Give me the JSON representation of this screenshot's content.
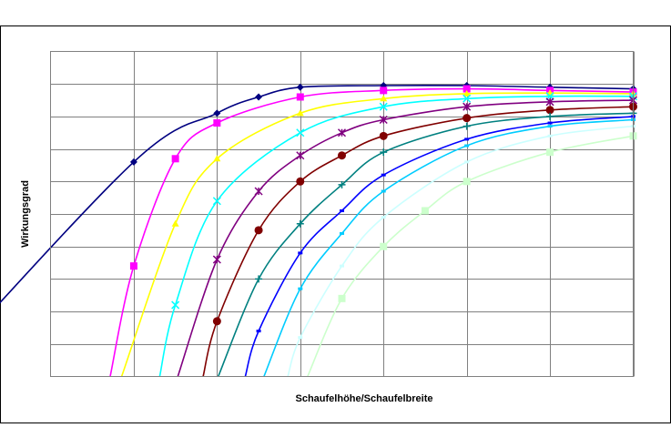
{
  "chart_data": {
    "type": "line",
    "title": "",
    "xlabel": "Schaufelhöhe/Schaufelbreite",
    "ylabel": "Wirkungsgrad",
    "x_ticks": [
      0.5,
      1,
      1.5,
      2,
      2.5,
      3,
      3.5
    ],
    "xlim": [
      0,
      3.5
    ],
    "ylim": [
      0,
      1
    ],
    "grid": true,
    "legend": "none",
    "series": [
      {
        "color": "#000080",
        "marker": "diamond",
        "x": [
          0.5,
          1,
          1.25,
          1.5,
          2,
          2.5,
          3,
          3.5
        ],
        "y": [
          0.66,
          0.81,
          0.86,
          0.89,
          0.895,
          0.895,
          0.89,
          0.885
        ]
      },
      {
        "color": "#FF00FF",
        "marker": "square",
        "x": [
          0.5,
          0.75,
          1,
          1.5,
          2,
          2.5,
          3,
          3.5
        ],
        "y": [
          0.34,
          0.67,
          0.78,
          0.86,
          0.88,
          0.885,
          0.88,
          0.875
        ]
      },
      {
        "color": "#FFFF00",
        "marker": "triangle",
        "x": [
          0.75,
          1,
          1.5,
          2,
          2.5,
          3,
          3.5
        ],
        "y": [
          0.47,
          0.67,
          0.81,
          0.855,
          0.87,
          0.872,
          0.87
        ]
      },
      {
        "color": "#00FFFF",
        "marker": "x",
        "x": [
          0.75,
          1,
          1.5,
          2,
          2.5,
          3,
          3.5
        ],
        "y": [
          0.22,
          0.54,
          0.75,
          0.83,
          0.855,
          0.862,
          0.862
        ]
      },
      {
        "color": "#800080",
        "marker": "star",
        "x": [
          1,
          1.25,
          1.5,
          1.75,
          2,
          2.5,
          3,
          3.5
        ],
        "y": [
          0.36,
          0.57,
          0.68,
          0.75,
          0.79,
          0.83,
          0.845,
          0.85
        ]
      },
      {
        "color": "#800000",
        "marker": "circle",
        "x": [
          1,
          1.25,
          1.5,
          1.75,
          2,
          2.5,
          3,
          3.5
        ],
        "y": [
          0.17,
          0.45,
          0.6,
          0.68,
          0.74,
          0.795,
          0.82,
          0.83
        ]
      },
      {
        "color": "#008080",
        "marker": "plus",
        "x": [
          1.25,
          1.5,
          1.75,
          2,
          2.5,
          3,
          3.5
        ],
        "y": [
          0.3,
          0.47,
          0.59,
          0.69,
          0.77,
          0.8,
          0.81
        ]
      },
      {
        "color": "#0000FF",
        "marker": "dash",
        "x": [
          1.25,
          1.5,
          1.75,
          2,
          2.5,
          3,
          3.5
        ],
        "y": [
          0.14,
          0.38,
          0.51,
          0.62,
          0.73,
          0.78,
          0.8
        ]
      },
      {
        "color": "#00CCFF",
        "marker": "dash",
        "x": [
          1.5,
          1.75,
          2,
          2.5,
          3,
          3.5
        ],
        "y": [
          0.27,
          0.44,
          0.57,
          0.71,
          0.77,
          0.79
        ]
      },
      {
        "color": "#CCFFFF",
        "marker": "dash",
        "x": [
          1.5,
          1.75,
          2,
          2.5,
          3,
          3.5
        ],
        "y": [
          0.12,
          0.34,
          0.49,
          0.66,
          0.74,
          0.77
        ]
      },
      {
        "color": "#CCFFCC",
        "marker": "square",
        "x": [
          1.75,
          2,
          2.25,
          2.5,
          3,
          3.5
        ],
        "y": [
          0.24,
          0.4,
          0.51,
          0.6,
          0.69,
          0.74
        ]
      }
    ]
  }
}
